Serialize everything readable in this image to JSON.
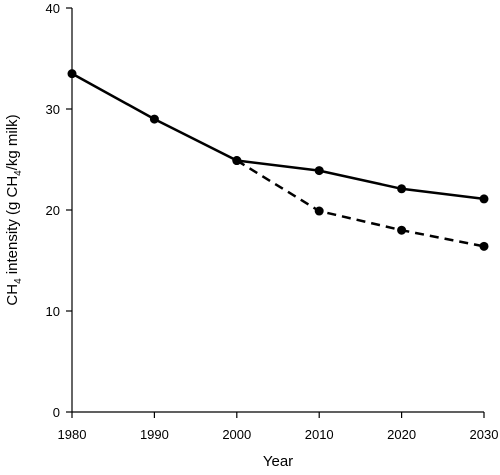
{
  "chart_data": {
    "type": "line",
    "xlabel": "Year",
    "ylabel": {
      "prefix": "CH",
      "sub1": "4",
      "middle": " intensity (g CH",
      "sub2": "4",
      "suffix": "/kg milk)"
    },
    "xlim": [
      1980,
      2030
    ],
    "ylim": [
      0,
      40
    ],
    "x_ticks": [
      1980,
      1990,
      2000,
      2010,
      2020,
      2030
    ],
    "y_ticks": [
      0,
      10,
      20,
      30,
      40
    ],
    "series": [
      {
        "style": "solid",
        "points": [
          {
            "x": 1980,
            "y": 33.5
          },
          {
            "x": 1990,
            "y": 29.0
          },
          {
            "x": 2000,
            "y": 24.9
          },
          {
            "x": 2010,
            "y": 23.9
          },
          {
            "x": 2020,
            "y": 22.1
          },
          {
            "x": 2030,
            "y": 21.1
          }
        ]
      },
      {
        "style": "dashed",
        "points": [
          {
            "x": 2000,
            "y": 24.9
          },
          {
            "x": 2010,
            "y": 19.9
          },
          {
            "x": 2020,
            "y": 18.0
          },
          {
            "x": 2030,
            "y": 16.4
          }
        ]
      }
    ],
    "grid": false,
    "legend": "none"
  }
}
